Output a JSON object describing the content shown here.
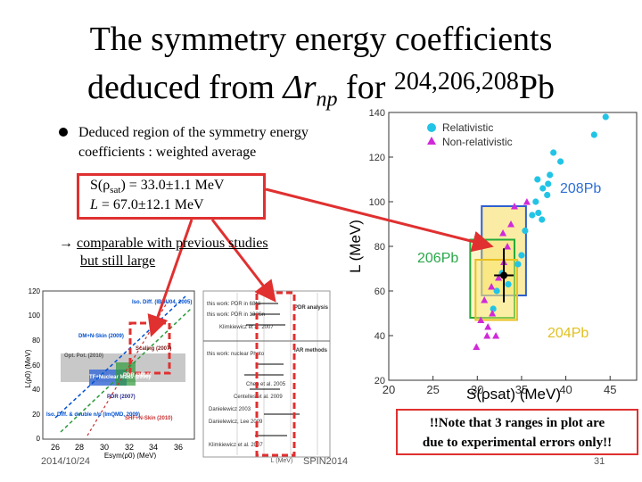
{
  "title": {
    "line1": "The symmetry energy coefficients",
    "line2_prefix": "deduced from ",
    "line2_delta": "Δr",
    "line2_sub": "np",
    "line2_for": " for ",
    "line2_sup": "204,206,208",
    "line2_element": "Pb"
  },
  "bullet": "Deduced region of the symmetry energy coefficients : weighted average",
  "result_box": {
    "s_label": "S(ρ",
    "s_sub": "sat",
    "s_value": ") = 33.0±1.1 MeV",
    "l_label": "L",
    "l_value": " =  67.0±12.1 MeV"
  },
  "comparison": {
    "arrow": "→",
    "line1": "comparable with previous studies",
    "line2": "but still large"
  },
  "note": {
    "line1": "!!Note that 3 ranges in plot are",
    "line2": "due to experimental errors only!!"
  },
  "footer": {
    "date": "2014/10/24",
    "conference": "SPIN2014",
    "page": "31"
  },
  "colors": {
    "relativistic": "#22c4e6",
    "non_relativistic": "#d02ad8",
    "highlight": "#e03030"
  },
  "chart_data": [
    {
      "type": "scatter",
      "title": "",
      "xlabel": "S(ρsat) (MeV)",
      "ylabel": "L (MeV)",
      "xlim": [
        20,
        48
      ],
      "ylim": [
        20,
        140
      ],
      "xticks": [
        20,
        25,
        30,
        35,
        40,
        45
      ],
      "yticks": [
        20,
        40,
        60,
        80,
        100,
        120,
        140
      ],
      "legend": [
        "Relativistic",
        "Non-relativistic"
      ],
      "annotations": [
        "208Pb",
        "206Pb",
        "204Pb"
      ],
      "series": [
        {
          "name": "Relativistic",
          "points": [
            [
              44.5,
              138
            ],
            [
              43.2,
              130
            ],
            [
              38.6,
              122
            ],
            [
              39.4,
              118
            ],
            [
              38.2,
              112
            ],
            [
              38.0,
              108
            ],
            [
              37.4,
              106
            ],
            [
              36.8,
              110
            ],
            [
              37.9,
              103
            ],
            [
              36.6,
              100
            ],
            [
              36.9,
              95
            ],
            [
              37.3,
              92
            ],
            [
              36.2,
              94
            ],
            [
              35.4,
              87
            ],
            [
              35.0,
              76
            ],
            [
              34.6,
              72
            ],
            [
              32.8,
              68
            ],
            [
              33.5,
              63
            ],
            [
              32.2,
              60
            ],
            [
              31.8,
              52
            ]
          ]
        },
        {
          "name": "Non-relativistic",
          "points": [
            [
              35.6,
              100
            ],
            [
              34.2,
              98
            ],
            [
              33.8,
              90
            ],
            [
              32.9,
              86
            ],
            [
              33.4,
              80
            ],
            [
              33.0,
              73
            ],
            [
              32.4,
              66
            ],
            [
              31.6,
              62
            ],
            [
              30.8,
              56
            ],
            [
              31.7,
              50
            ],
            [
              30.4,
              47
            ],
            [
              31.2,
              44
            ],
            [
              32.1,
              40
            ],
            [
              29.9,
              35
            ],
            [
              31.1,
              40
            ]
          ]
        }
      ],
      "weighted_average": {
        "S": 33.0,
        "S_err": 1.1,
        "L": 67.0,
        "L_err": 12.1
      },
      "ranges": [
        {
          "name": "208Pb",
          "S": [
            30.5,
            35.5
          ],
          "L": [
            58,
            98
          ]
        },
        {
          "name": "206Pb",
          "S": [
            29.2,
            34.2
          ],
          "L": [
            48,
            83
          ]
        },
        {
          "name": "204Pb",
          "S": [
            29.8,
            34.5
          ],
          "L": [
            47,
            74
          ]
        }
      ]
    },
    {
      "type": "scatter",
      "title": "",
      "xlabel": "Esym(ρ0) (MeV)",
      "ylabel": "L(ρ0) (MeV)",
      "xlim": [
        25,
        37
      ],
      "ylim": [
        0,
        120
      ],
      "xticks": [
        26,
        28,
        30,
        32,
        34,
        36
      ],
      "yticks": [
        0,
        20,
        40,
        60,
        80,
        100,
        120
      ],
      "annotations": [
        "Iso. Diff. (IBUU04, 2005)",
        "DM+N-Skin (2009)",
        "Opt. Pot. (2010)",
        "Scaling (2007)",
        "PDR (2010)",
        "TF+Nuclear Mass (1996)",
        "PDR (2007)",
        "Iso. Diff. & double n/p (ImQMD, 2009)",
        "SHF+N-Skin (2010)"
      ]
    },
    {
      "type": "table",
      "title": "",
      "xlabel": "L (MeV)",
      "annotations": [
        "this work: PDR in 68Ni",
        "this work: PDR in 132Sn",
        "PDR analysis",
        "Klimkiewicz et al. 2007",
        "IAR methods",
        "this work: nuclear Photo",
        "Chen et al. 2005",
        "Centelles et al. 2009",
        "Danielewicz 2003",
        "Danielewicz, Lee 2009",
        "Klimkiewicz et al. 2007"
      ]
    }
  ]
}
